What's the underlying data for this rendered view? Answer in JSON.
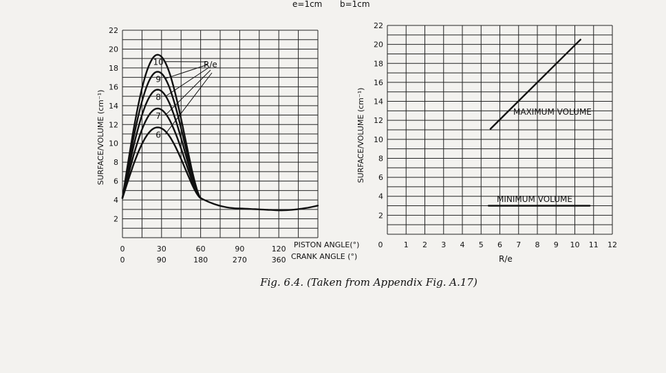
{
  "header": {
    "params": [
      "e=1cm",
      "b=1cm"
    ]
  },
  "caption": "Fig. 6.4. (Taken from Appendix Fig. A.17)",
  "chart_data": [
    {
      "type": "line",
      "ylabel": "SURFACE/VOLUME (cm⁻¹)",
      "xlabel_primary": "PISTON ANGLE(°)",
      "xlabel_secondary": "CRANK ANGLE (°)",
      "xlim": [
        0,
        150
      ],
      "ylim": [
        0,
        22
      ],
      "grid": true,
      "yticks": [
        "2",
        "4",
        "6",
        "8",
        "10",
        "12",
        "14",
        "16",
        "18",
        "20",
        "22"
      ],
      "xticks_primary": [
        "0",
        "30",
        "60",
        "90",
        "120"
      ],
      "xticks_secondary": [
        "0",
        "90",
        "180",
        "270",
        "360"
      ],
      "legend_title": "R/e",
      "series": [
        {
          "name": "10",
          "peak": 19.4,
          "peak_x": 27
        },
        {
          "name": "9",
          "peak": 17.6,
          "peak_x": 27
        },
        {
          "name": "8",
          "peak": 15.7,
          "peak_x": 27
        },
        {
          "name": "7",
          "peak": 13.7,
          "peak_x": 27
        },
        {
          "name": "6",
          "peak": 11.7,
          "peak_x": 27
        }
      ],
      "tail": {
        "x": [
          0,
          60,
          90,
          120,
          150
        ],
        "y": [
          4.2,
          4.2,
          3.1,
          2.9,
          3.4
        ]
      }
    },
    {
      "type": "line",
      "ylabel": "SURFACE/VOLUME (cm⁻¹)",
      "xlabel": "R/e",
      "xlim": [
        0,
        12
      ],
      "ylim": [
        0,
        22
      ],
      "grid": true,
      "yticks": [
        "2",
        "4",
        "6",
        "8",
        "10",
        "12",
        "14",
        "16",
        "18",
        "20",
        "22"
      ],
      "xticks": [
        "0",
        "1",
        "2",
        "3",
        "4",
        "5",
        "6",
        "7",
        "8",
        "9",
        "10",
        "11",
        "12"
      ],
      "series": [
        {
          "name": "MAXIMUM VOLUME",
          "x": [
            5.5,
            10.3
          ],
          "y": [
            11.1,
            20.5
          ]
        },
        {
          "name": "MINIMUM VOLUME",
          "x": [
            5.4,
            10.8
          ],
          "y": [
            3.0,
            3.0
          ]
        }
      ]
    }
  ]
}
